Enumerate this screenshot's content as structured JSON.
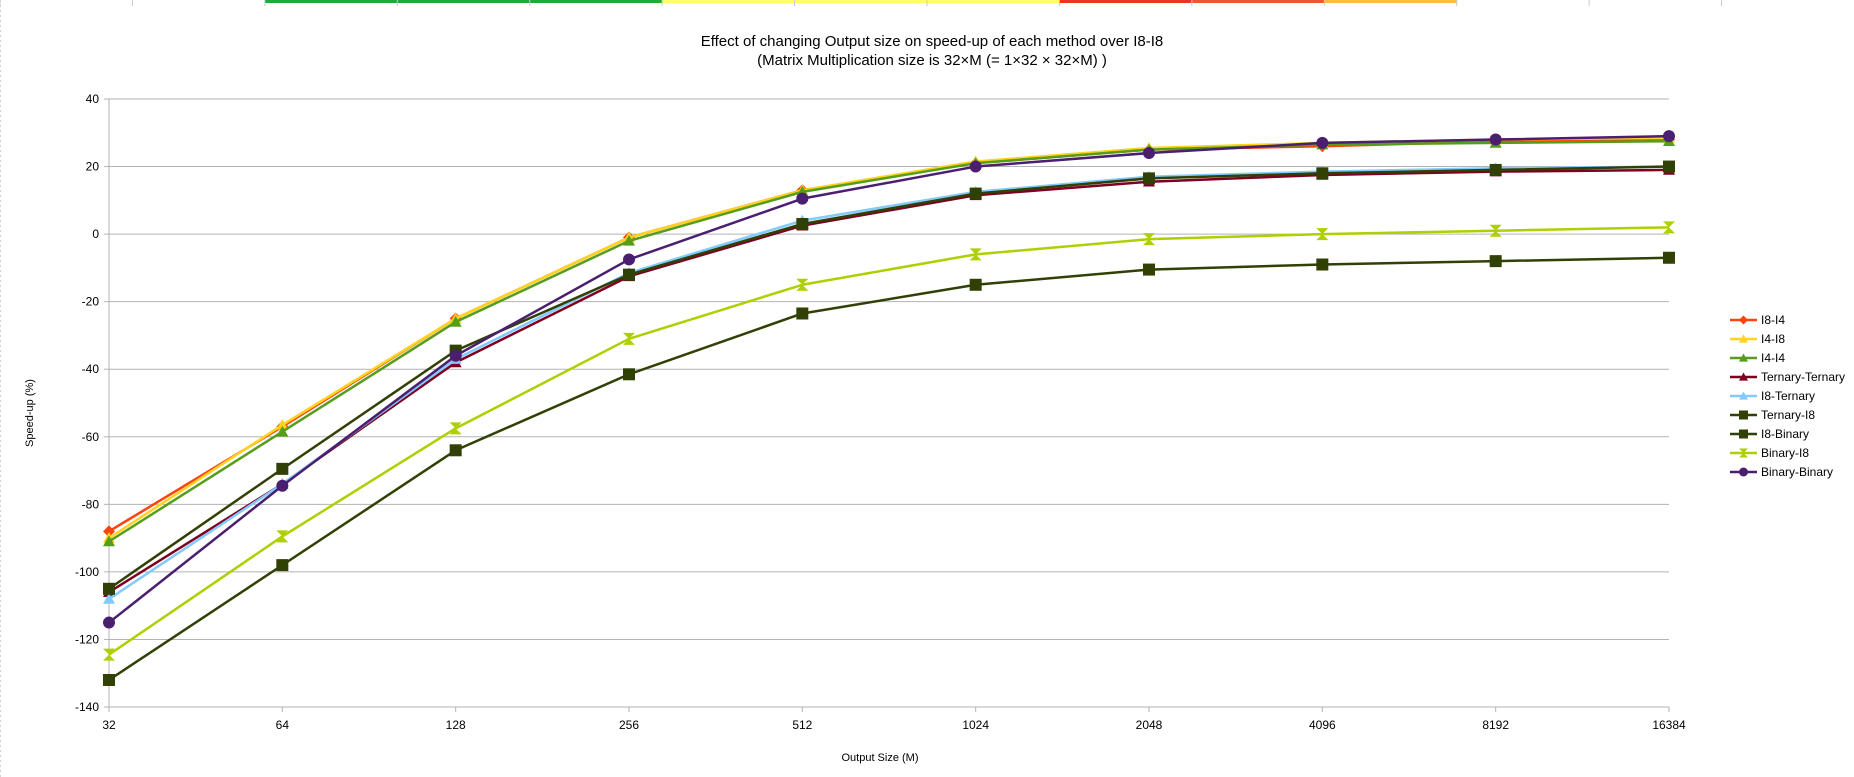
{
  "colors": {
    "grid": "#b3b3b3",
    "axis": "#b3b3b3",
    "sheet_strip": [
      "#ffffff",
      "#ffffff",
      "#22aa33",
      "#22aa33",
      "#22aa33",
      "#ffff66",
      "#ffff66",
      "#ffff66",
      "#ee3322",
      "#ee5533",
      "#ffbb44",
      "#ffffff",
      "#ffffff",
      "#ffffff"
    ]
  },
  "chart_data": {
    "type": "line",
    "title": "Effect of changing Output size on speed-up of each method over I8-I8",
    "subtitle": "(Matrix Multiplication size is 32×M (= 1×32 × 32×M) )",
    "xlabel": "Output Size (M)",
    "ylabel": "Speed-up (%)",
    "x_scale": "categorical",
    "categories": [
      "32",
      "64",
      "128",
      "256",
      "512",
      "1024",
      "2048",
      "4096",
      "8192",
      "16384"
    ],
    "ylim": [
      -140,
      40
    ],
    "yticks": [
      40,
      20,
      0,
      -20,
      -40,
      -60,
      -80,
      -100,
      -120,
      -140
    ],
    "grid": true,
    "legend_position": "right",
    "series": [
      {
        "name": "I8-I4",
        "color": "#ff420e",
        "marker": "diamond",
        "values": [
          -88,
          -57,
          -25,
          -1,
          13,
          21,
          25,
          26,
          27.5,
          28
        ]
      },
      {
        "name": "I4-I8",
        "color": "#ffd320",
        "marker": "triangle",
        "values": [
          -90,
          -56.5,
          -25,
          -1,
          13,
          21.5,
          25.5,
          27,
          28,
          28.5
        ]
      },
      {
        "name": "I4-I4",
        "color": "#579d1c",
        "marker": "triangle",
        "values": [
          -91,
          -58.5,
          -26,
          -2,
          12.5,
          21,
          25,
          26.5,
          27,
          27.5
        ]
      },
      {
        "name": "Ternary-Ternary",
        "color": "#7e0021",
        "marker": "triangle",
        "values": [
          -106,
          -74,
          -38,
          -12.5,
          2.5,
          11.5,
          15.5,
          17.5,
          18.5,
          19
        ]
      },
      {
        "name": "I8-Ternary",
        "color": "#83caff",
        "marker": "triangle",
        "values": [
          -108,
          -74,
          -37,
          -11.5,
          4,
          12.5,
          17,
          18.5,
          19.5,
          20
        ]
      },
      {
        "name": "Ternary-I8",
        "color": "#314004",
        "marker": "square",
        "values": [
          -105,
          -69.5,
          -34.5,
          -12,
          3,
          12,
          16.5,
          18,
          19,
          20
        ]
      },
      {
        "name": "I8-Binary",
        "color": "#314004",
        "marker": "square",
        "values": [
          -132,
          -98,
          -64,
          -41.5,
          -23.5,
          -15,
          -10.5,
          -9,
          -8,
          -7
        ]
      },
      {
        "name": "Binary-I8",
        "color": "#aecf00",
        "marker": "bowtie",
        "values": [
          -124.5,
          -89.5,
          -57.5,
          -31,
          -15,
          -6,
          -1.5,
          0,
          1,
          2
        ]
      },
      {
        "name": "Binary-Binary",
        "color": "#4b1f6f",
        "marker": "circle",
        "values": [
          -115,
          -74.5,
          -36,
          -7.5,
          10.5,
          20,
          24,
          27,
          28,
          29
        ]
      }
    ]
  }
}
